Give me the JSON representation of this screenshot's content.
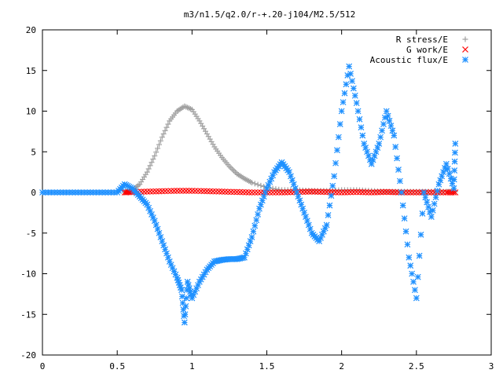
{
  "chart_data": {
    "type": "scatter",
    "title": "m3/n1.5/q2.0/r-+.20-j104/M2.5/512",
    "xlabel": "",
    "ylabel": "",
    "xlim": [
      0,
      3
    ],
    "ylim": [
      -20,
      20
    ],
    "x_ticks": [
      0,
      0.5,
      1,
      1.5,
      2,
      2.5,
      3
    ],
    "x_tick_labels": [
      "0",
      "0.5",
      "1",
      "1.5",
      "2",
      "2.5",
      "3"
    ],
    "y_ticks": [
      -20,
      -15,
      -10,
      -5,
      0,
      5,
      10,
      15,
      20
    ],
    "y_tick_labels": [
      "-20",
      "-15",
      "-10",
      "-5",
      "0",
      "5",
      "10",
      "15",
      "20"
    ],
    "grid": false,
    "legend_position": "top-right",
    "series": [
      {
        "name": "R stress/E",
        "marker": "plus",
        "color": "#a0a0a0",
        "x": [
          0.55,
          0.6,
          0.65,
          0.7,
          0.75,
          0.8,
          0.85,
          0.9,
          0.95,
          1.0,
          1.05,
          1.1,
          1.15,
          1.2,
          1.25,
          1.3,
          1.35,
          1.4,
          1.5,
          1.6,
          1.7,
          1.8,
          1.9,
          2.0,
          2.1,
          2.2,
          2.3,
          2.4,
          2.5,
          2.6,
          2.7,
          2.76
        ],
        "y": [
          0.0,
          0.3,
          1.0,
          2.5,
          4.5,
          6.8,
          8.8,
          10.0,
          10.6,
          10.2,
          8.8,
          7.2,
          5.6,
          4.3,
          3.2,
          2.3,
          1.7,
          1.2,
          0.6,
          0.3,
          0.3,
          0.2,
          0.2,
          0.3,
          0.3,
          0.2,
          0.1,
          0.1,
          0.1,
          0.1,
          0.1,
          0.1
        ]
      },
      {
        "name": "G work/E",
        "marker": "cross",
        "color": "#ff0000",
        "x": [
          0.55,
          0.6,
          0.7,
          0.8,
          0.9,
          1.0,
          1.1,
          1.2,
          1.3,
          1.4,
          1.5,
          1.6,
          1.7,
          1.8,
          1.9,
          2.0,
          2.1,
          2.2,
          2.3,
          2.4,
          2.5,
          2.6,
          2.7,
          2.76
        ],
        "y": [
          0.0,
          0.05,
          0.1,
          0.15,
          0.2,
          0.2,
          0.15,
          0.1,
          0.05,
          0.0,
          0.0,
          0.0,
          0.05,
          0.1,
          0.05,
          0.0,
          0.05,
          0.0,
          0.05,
          0.0,
          0.0,
          0.0,
          0.0,
          0.0
        ]
      },
      {
        "name": "Acoustic flux/E",
        "marker": "star",
        "color": "#1e90ff",
        "x": [
          0.0,
          0.1,
          0.2,
          0.3,
          0.4,
          0.5,
          0.55,
          0.6,
          0.65,
          0.7,
          0.75,
          0.8,
          0.85,
          0.9,
          0.93,
          0.95,
          0.97,
          1.0,
          1.05,
          1.1,
          1.15,
          1.2,
          1.25,
          1.3,
          1.35,
          1.4,
          1.45,
          1.5,
          1.55,
          1.6,
          1.65,
          1.7,
          1.75,
          1.8,
          1.85,
          1.9,
          1.95,
          2.0,
          2.05,
          2.1,
          2.15,
          2.2,
          2.25,
          2.3,
          2.35,
          2.4,
          2.45,
          2.5,
          2.55,
          2.6,
          2.65,
          2.7,
          2.75,
          2.76
        ],
        "y": [
          0.0,
          0.0,
          0.0,
          0.0,
          0.0,
          0.0,
          1.0,
          0.5,
          -0.5,
          -1.5,
          -3.5,
          -6.0,
          -8.5,
          -10.5,
          -12.0,
          -16.0,
          -11.0,
          -13.0,
          -11.0,
          -9.5,
          -8.5,
          -8.3,
          -8.2,
          -8.2,
          -8.0,
          -5.5,
          -2.0,
          0.5,
          2.5,
          3.7,
          2.5,
          0.0,
          -2.5,
          -5.0,
          -6.0,
          -4.0,
          2.0,
          10.0,
          15.5,
          11.0,
          6.0,
          3.5,
          6.0,
          10.0,
          7.0,
          0.0,
          -8.0,
          -13.0,
          0.0,
          -3.0,
          1.0,
          3.5,
          0.5,
          6.0
        ]
      }
    ]
  }
}
